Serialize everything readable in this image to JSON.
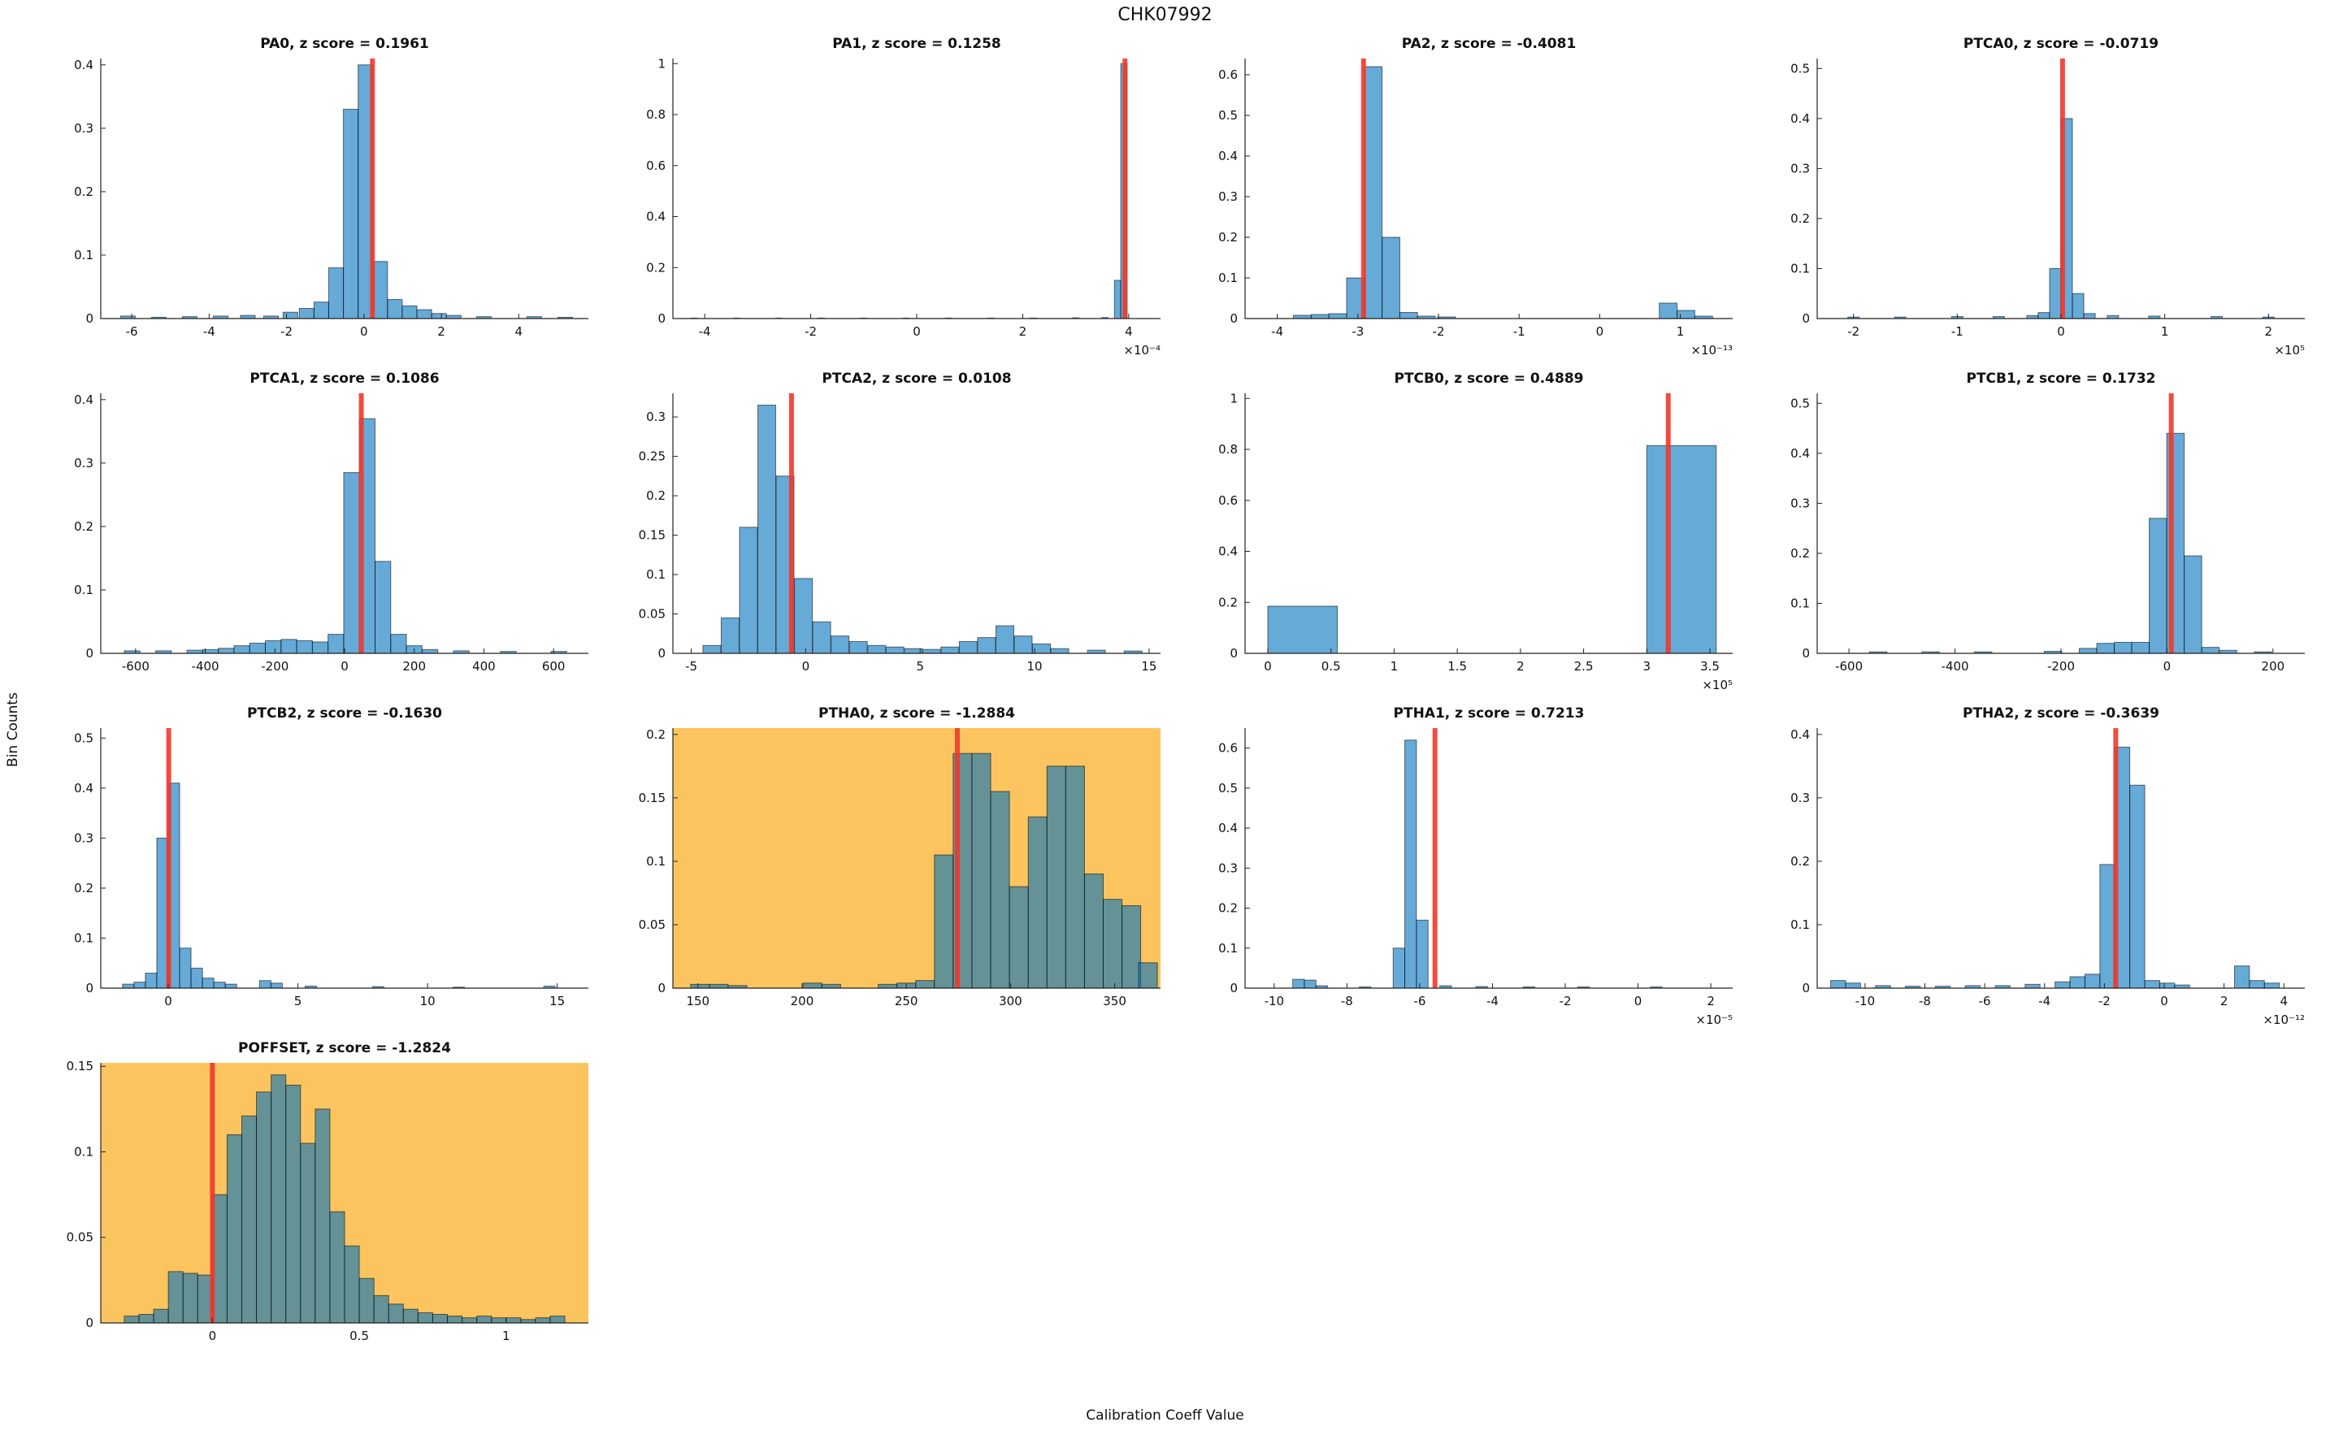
{
  "figure": {
    "title": "CHK07992",
    "xlabel": "Calibration Coeff Value",
    "ylabel": "Bin Counts"
  },
  "style": {
    "bar_color": "#0072BD",
    "bar_alpha": 0.6,
    "edge_color": "#000000",
    "marker_color": "#F0392C",
    "highlight_bg": "#FCC45E",
    "plot_bg": "#FFFFFF",
    "axis_color": "#222222"
  },
  "chart_data": [
    {
      "type": "histogram",
      "name": "PA0",
      "title": "PA0, z score = 0.1961",
      "z_score": 0.1961,
      "highlight": false,
      "x_exponent": null,
      "xlim": [
        -6.8,
        5.8
      ],
      "ylim": [
        0,
        0.41
      ],
      "xticks": [
        -6,
        -4,
        -2,
        0,
        2,
        4
      ],
      "yticks": [
        0,
        0.1,
        0.2,
        0.3,
        0.4
      ],
      "bin_width": 0.38,
      "marker_x": 0.22,
      "bars": [
        [
          -6.1,
          0.004
        ],
        [
          -5.3,
          0.002
        ],
        [
          -4.5,
          0.003
        ],
        [
          -3.7,
          0.004
        ],
        [
          -3.0,
          0.005
        ],
        [
          -2.4,
          0.004
        ],
        [
          -1.9,
          0.01
        ],
        [
          -1.48,
          0.016
        ],
        [
          -1.1,
          0.026
        ],
        [
          -0.72,
          0.08
        ],
        [
          -0.34,
          0.33
        ],
        [
          0.04,
          0.4
        ],
        [
          0.42,
          0.09
        ],
        [
          0.8,
          0.03
        ],
        [
          1.18,
          0.02
        ],
        [
          1.56,
          0.014
        ],
        [
          1.94,
          0.008
        ],
        [
          2.32,
          0.005
        ],
        [
          3.1,
          0.003
        ],
        [
          4.4,
          0.003
        ],
        [
          5.2,
          0.002
        ]
      ]
    },
    {
      "type": "histogram",
      "name": "PA1",
      "title": "PA1, z score = 0.1258",
      "z_score": 0.1258,
      "highlight": false,
      "x_exponent": "-4",
      "xlim": [
        -4.6,
        4.6
      ],
      "ylim": [
        0,
        1.02
      ],
      "xticks": [
        -4,
        -2,
        0,
        2,
        4
      ],
      "yticks": [
        0,
        0.2,
        0.4,
        0.6,
        0.8,
        1
      ],
      "bin_width": 0.12,
      "marker_x": 3.93,
      "bars": [
        [
          -4.2,
          0.002
        ],
        [
          -3.4,
          0.002
        ],
        [
          -2.6,
          0.002
        ],
        [
          -1.8,
          0.002
        ],
        [
          -1.0,
          0.002
        ],
        [
          -0.2,
          0.002
        ],
        [
          0.6,
          0.002
        ],
        [
          1.4,
          0.002
        ],
        [
          2.2,
          0.002
        ],
        [
          3.0,
          0.003
        ],
        [
          3.55,
          0.004
        ],
        [
          3.79,
          0.15
        ],
        [
          3.91,
          1.0
        ]
      ]
    },
    {
      "type": "histogram",
      "name": "PA2",
      "title": "PA2, z score = -0.4081",
      "z_score": -0.4081,
      "highlight": false,
      "x_exponent": "-13",
      "xlim": [
        -4.4,
        1.65
      ],
      "ylim": [
        0,
        0.64
      ],
      "xticks": [
        -4,
        -3,
        -2,
        -1,
        0,
        1
      ],
      "yticks": [
        0,
        0.1,
        0.2,
        0.3,
        0.4,
        0.5,
        0.6
      ],
      "bin_width": 0.22,
      "marker_x": -2.93,
      "bars": [
        [
          -3.69,
          0.008
        ],
        [
          -3.47,
          0.01
        ],
        [
          -3.25,
          0.012
        ],
        [
          -3.03,
          0.1
        ],
        [
          -2.81,
          0.62
        ],
        [
          -2.59,
          0.2
        ],
        [
          -2.37,
          0.015
        ],
        [
          -2.15,
          0.006
        ],
        [
          -1.9,
          0.004
        ],
        [
          0.85,
          0.038
        ],
        [
          1.07,
          0.02
        ],
        [
          1.29,
          0.006
        ]
      ]
    },
    {
      "type": "histogram",
      "name": "PTCA0",
      "title": "PTCA0, z score = -0.0719",
      "z_score": -0.0719,
      "highlight": false,
      "x_exponent": "5",
      "xlim": [
        -2.35,
        2.35
      ],
      "ylim": [
        0,
        0.52
      ],
      "xticks": [
        -2,
        -1,
        0,
        1,
        2
      ],
      "yticks": [
        0,
        0.1,
        0.2,
        0.3,
        0.4,
        0.5
      ],
      "bin_width": 0.11,
      "marker_x": 0.015,
      "bars": [
        [
          -2.0,
          0.003
        ],
        [
          -1.55,
          0.003
        ],
        [
          -1.0,
          0.004
        ],
        [
          -0.6,
          0.004
        ],
        [
          -0.275,
          0.006
        ],
        [
          -0.165,
          0.012
        ],
        [
          -0.055,
          0.1
        ],
        [
          0.055,
          0.4
        ],
        [
          0.165,
          0.05
        ],
        [
          0.275,
          0.01
        ],
        [
          0.5,
          0.006
        ],
        [
          0.9,
          0.005
        ],
        [
          1.5,
          0.004
        ],
        [
          2.0,
          0.003
        ]
      ]
    },
    {
      "type": "histogram",
      "name": "PTCA1",
      "title": "PTCA1, z score = 0.1086",
      "z_score": 0.1086,
      "highlight": false,
      "x_exponent": null,
      "xlim": [
        -700,
        700
      ],
      "ylim": [
        0,
        0.41
      ],
      "xticks": [
        -600,
        -400,
        -200,
        0,
        200,
        400,
        600
      ],
      "yticks": [
        0,
        0.1,
        0.2,
        0.3,
        0.4
      ],
      "bin_width": 45,
      "marker_x": 48,
      "bars": [
        [
          -610,
          0.004
        ],
        [
          -520,
          0.004
        ],
        [
          -430,
          0.005
        ],
        [
          -385,
          0.006
        ],
        [
          -340,
          0.008
        ],
        [
          -295,
          0.012
        ],
        [
          -250,
          0.016
        ],
        [
          -205,
          0.02
        ],
        [
          -160,
          0.022
        ],
        [
          -115,
          0.02
        ],
        [
          -70,
          0.018
        ],
        [
          -25,
          0.03
        ],
        [
          20,
          0.285
        ],
        [
          65,
          0.37
        ],
        [
          110,
          0.145
        ],
        [
          155,
          0.03
        ],
        [
          200,
          0.012
        ],
        [
          245,
          0.006
        ],
        [
          335,
          0.004
        ],
        [
          470,
          0.003
        ],
        [
          615,
          0.003
        ]
      ]
    },
    {
      "type": "histogram",
      "name": "PTCA2",
      "title": "PTCA2, z score = 0.0108",
      "z_score": 0.0108,
      "highlight": false,
      "x_exponent": null,
      "xlim": [
        -5.8,
        15.5
      ],
      "ylim": [
        0,
        0.33
      ],
      "xticks": [
        -5,
        0,
        5,
        10,
        15
      ],
      "yticks": [
        0,
        0.05,
        0.1,
        0.15,
        0.2,
        0.25,
        0.3
      ],
      "bin_width": 0.78,
      "marker_x": -0.62,
      "bars": [
        [
          -4.1,
          0.01
        ],
        [
          -3.3,
          0.045
        ],
        [
          -2.5,
          0.16
        ],
        [
          -1.7,
          0.315
        ],
        [
          -0.9,
          0.225
        ],
        [
          -0.1,
          0.095
        ],
        [
          0.7,
          0.04
        ],
        [
          1.5,
          0.022
        ],
        [
          2.3,
          0.015
        ],
        [
          3.1,
          0.01
        ],
        [
          3.9,
          0.008
        ],
        [
          4.7,
          0.006
        ],
        [
          5.5,
          0.005
        ],
        [
          6.3,
          0.008
        ],
        [
          7.1,
          0.015
        ],
        [
          7.9,
          0.02
        ],
        [
          8.7,
          0.035
        ],
        [
          9.5,
          0.022
        ],
        [
          10.3,
          0.012
        ],
        [
          11.1,
          0.006
        ],
        [
          12.7,
          0.004
        ],
        [
          14.3,
          0.003
        ]
      ]
    },
    {
      "type": "histogram",
      "name": "PTCB0",
      "title": "PTCB0, z score = 0.4889",
      "z_score": 0.4889,
      "highlight": false,
      "x_exponent": "5",
      "xlim": [
        -0.18,
        3.68
      ],
      "ylim": [
        0,
        1.02
      ],
      "xticks": [
        0,
        0.5,
        1,
        1.5,
        2,
        2.5,
        3,
        3.5
      ],
      "yticks": [
        0,
        0.2,
        0.4,
        0.6,
        0.8,
        1
      ],
      "bin_width": 0.55,
      "marker_x": 3.17,
      "bars": [
        [
          0.275,
          0.185
        ],
        [
          3.275,
          0.815
        ]
      ]
    },
    {
      "type": "histogram",
      "name": "PTCB1",
      "title": "PTCB1, z score = 0.1732",
      "z_score": 0.1732,
      "highlight": false,
      "x_exponent": null,
      "xlim": [
        -660,
        260
      ],
      "ylim": [
        0,
        0.52
      ],
      "xticks": [
        -600,
        -400,
        -200,
        0,
        200
      ],
      "yticks": [
        0,
        0.1,
        0.2,
        0.3,
        0.4,
        0.5
      ],
      "bin_width": 33,
      "marker_x": 8,
      "bars": [
        [
          -545,
          0.003
        ],
        [
          -446,
          0.003
        ],
        [
          -347,
          0.003
        ],
        [
          -215,
          0.004
        ],
        [
          -149,
          0.01
        ],
        [
          -116,
          0.02
        ],
        [
          -83,
          0.022
        ],
        [
          -50,
          0.022
        ],
        [
          -17,
          0.27
        ],
        [
          16,
          0.44
        ],
        [
          49,
          0.195
        ],
        [
          82,
          0.012
        ],
        [
          115,
          0.006
        ],
        [
          181,
          0.003
        ]
      ]
    },
    {
      "type": "histogram",
      "name": "PTCB2",
      "title": "PTCB2, z score = -0.1630",
      "z_score": -0.163,
      "highlight": false,
      "x_exponent": null,
      "xlim": [
        -2.6,
        16.2
      ],
      "ylim": [
        0,
        0.52
      ],
      "xticks": [
        0,
        5,
        10,
        15
      ],
      "yticks": [
        0,
        0.1,
        0.2,
        0.3,
        0.4,
        0.5
      ],
      "bin_width": 0.44,
      "marker_x": 0.02,
      "bars": [
        [
          -1.54,
          0.008
        ],
        [
          -1.1,
          0.012
        ],
        [
          -0.66,
          0.03
        ],
        [
          -0.22,
          0.3
        ],
        [
          0.22,
          0.41
        ],
        [
          0.66,
          0.08
        ],
        [
          1.1,
          0.04
        ],
        [
          1.54,
          0.02
        ],
        [
          1.98,
          0.012
        ],
        [
          2.42,
          0.008
        ],
        [
          3.74,
          0.015
        ],
        [
          4.18,
          0.01
        ],
        [
          5.5,
          0.004
        ],
        [
          8.1,
          0.003
        ],
        [
          11.2,
          0.002
        ],
        [
          14.7,
          0.004
        ]
      ]
    },
    {
      "type": "histogram",
      "name": "PTHA0",
      "title": "PTHA0, z score = -1.2884",
      "z_score": -1.2884,
      "highlight": true,
      "x_exponent": null,
      "xlim": [
        138,
        372
      ],
      "ylim": [
        0,
        0.205
      ],
      "xticks": [
        150,
        200,
        250,
        300,
        350
      ],
      "yticks": [
        0,
        0.05,
        0.1,
        0.15,
        0.2
      ],
      "bin_width": 9,
      "marker_x": 274.5,
      "bars": [
        [
          151,
          0.003
        ],
        [
          160,
          0.003
        ],
        [
          169,
          0.002
        ],
        [
          205,
          0.004
        ],
        [
          214,
          0.003
        ],
        [
          241,
          0.003
        ],
        [
          250,
          0.004
        ],
        [
          259,
          0.006
        ],
        [
          268,
          0.105
        ],
        [
          277,
          0.185
        ],
        [
          286,
          0.185
        ],
        [
          295,
          0.155
        ],
        [
          304,
          0.08
        ],
        [
          313,
          0.135
        ],
        [
          322,
          0.175
        ],
        [
          331,
          0.175
        ],
        [
          340,
          0.09
        ],
        [
          349,
          0.07
        ],
        [
          358,
          0.065
        ],
        [
          366,
          0.02
        ]
      ]
    },
    {
      "type": "histogram",
      "name": "PTHA1",
      "title": "PTHA1, z score = 0.7213",
      "z_score": 0.7213,
      "highlight": false,
      "x_exponent": "-5",
      "xlim": [
        -10.8,
        2.6
      ],
      "ylim": [
        0,
        0.65
      ],
      "xticks": [
        -10,
        -8,
        -6,
        -4,
        -2,
        0,
        2
      ],
      "yticks": [
        0,
        0.1,
        0.2,
        0.3,
        0.4,
        0.5,
        0.6
      ],
      "bin_width": 0.32,
      "marker_x": -5.58,
      "bars": [
        [
          -9.33,
          0.022
        ],
        [
          -9.01,
          0.02
        ],
        [
          -8.69,
          0.006
        ],
        [
          -7.5,
          0.003
        ],
        [
          -6.57,
          0.1
        ],
        [
          -6.25,
          0.62
        ],
        [
          -5.93,
          0.17
        ],
        [
          -5.29,
          0.006
        ],
        [
          -4.3,
          0.004
        ],
        [
          -3.0,
          0.003
        ],
        [
          -1.5,
          0.003
        ],
        [
          0.5,
          0.003
        ]
      ]
    },
    {
      "type": "histogram",
      "name": "PTHA2",
      "title": "PTHA2, z score = -0.3639",
      "z_score": -0.3639,
      "highlight": false,
      "x_exponent": "-12",
      "xlim": [
        -11.6,
        4.7
      ],
      "ylim": [
        0,
        0.41
      ],
      "xticks": [
        -10,
        -8,
        -6,
        -4,
        -2,
        0,
        2,
        4
      ],
      "yticks": [
        0,
        0.1,
        0.2,
        0.3,
        0.4
      ],
      "bin_width": 0.5,
      "marker_x": -1.62,
      "bars": [
        [
          -10.9,
          0.012
        ],
        [
          -10.4,
          0.008
        ],
        [
          -9.4,
          0.004
        ],
        [
          -8.4,
          0.003
        ],
        [
          -7.4,
          0.003
        ],
        [
          -6.4,
          0.004
        ],
        [
          -5.4,
          0.004
        ],
        [
          -4.4,
          0.006
        ],
        [
          -3.4,
          0.01
        ],
        [
          -2.9,
          0.018
        ],
        [
          -2.4,
          0.022
        ],
        [
          -1.9,
          0.195
        ],
        [
          -1.4,
          0.38
        ],
        [
          -0.9,
          0.32
        ],
        [
          -0.4,
          0.012
        ],
        [
          0.1,
          0.008
        ],
        [
          0.6,
          0.005
        ],
        [
          2.6,
          0.035
        ],
        [
          3.1,
          0.012
        ],
        [
          3.6,
          0.008
        ]
      ]
    },
    {
      "type": "histogram",
      "name": "POFFSET",
      "title": "POFFSET, z score = -1.2824",
      "z_score": -1.2824,
      "highlight": true,
      "x_exponent": null,
      "xlim": [
        -0.38,
        1.28
      ],
      "ylim": [
        0,
        0.152
      ],
      "xticks": [
        0,
        0.5,
        1
      ],
      "yticks": [
        0,
        0.05,
        0.1,
        0.15
      ],
      "bin_width": 0.05,
      "marker_x": 0.0,
      "bars": [
        [
          -0.275,
          0.004
        ],
        [
          -0.225,
          0.005
        ],
        [
          -0.175,
          0.008
        ],
        [
          -0.125,
          0.03
        ],
        [
          -0.075,
          0.029
        ],
        [
          -0.025,
          0.028
        ],
        [
          0.025,
          0.075
        ],
        [
          0.075,
          0.11
        ],
        [
          0.125,
          0.121
        ],
        [
          0.175,
          0.135
        ],
        [
          0.225,
          0.145
        ],
        [
          0.275,
          0.139
        ],
        [
          0.325,
          0.105
        ],
        [
          0.375,
          0.125
        ],
        [
          0.425,
          0.065
        ],
        [
          0.475,
          0.045
        ],
        [
          0.525,
          0.026
        ],
        [
          0.575,
          0.016
        ],
        [
          0.625,
          0.011
        ],
        [
          0.675,
          0.008
        ],
        [
          0.725,
          0.006
        ],
        [
          0.775,
          0.005
        ],
        [
          0.825,
          0.004
        ],
        [
          0.875,
          0.003
        ],
        [
          0.925,
          0.004
        ],
        [
          0.975,
          0.003
        ],
        [
          1.025,
          0.003
        ],
        [
          1.075,
          0.002
        ],
        [
          1.125,
          0.003
        ],
        [
          1.175,
          0.004
        ]
      ]
    }
  ]
}
